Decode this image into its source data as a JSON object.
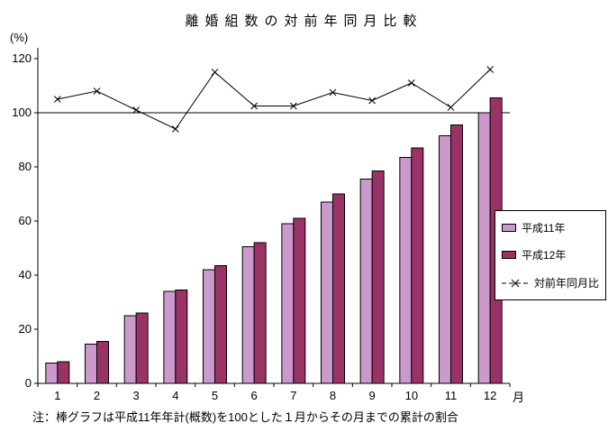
{
  "title": "離婚組数の対前年同月比較",
  "note": "注：棒グラフは平成11年年計(概数)を100とした１月からその月までの累計の割合",
  "axes": {
    "y_unit": "(%)",
    "x_unit": "月"
  },
  "legend": {
    "series1": "平成11年",
    "series2": "平成12年",
    "series3": "対前年同月比"
  },
  "colors": {
    "series1_fill": "#CC99CC",
    "series2_fill": "#993366",
    "line_color": "#000000",
    "axis_color": "#000000",
    "reference_line_color": "#000000"
  },
  "chart_data": {
    "type": "bar",
    "title": "離婚組数の対前年同月比較",
    "xlabel": "月",
    "ylabel": "(%)",
    "categories": [
      "1",
      "2",
      "3",
      "4",
      "5",
      "6",
      "7",
      "8",
      "9",
      "10",
      "11",
      "12"
    ],
    "series": [
      {
        "name": "平成11年",
        "type": "bar",
        "values": [
          7.5,
          14.5,
          25,
          34,
          42,
          50.5,
          59,
          67,
          75.5,
          83.5,
          91.5,
          100
        ]
      },
      {
        "name": "平成12年",
        "type": "bar",
        "values": [
          8,
          15.5,
          26,
          34.5,
          43.5,
          52,
          61,
          70,
          78.5,
          87,
          95.5,
          105.5
        ]
      },
      {
        "name": "対前年同月比",
        "type": "line",
        "values": [
          105,
          108,
          101,
          94,
          115,
          102.5,
          102.5,
          107.5,
          104.5,
          111,
          102,
          116
        ]
      }
    ],
    "ylim": [
      0,
      120
    ],
    "yticks": [
      0,
      20,
      40,
      60,
      80,
      100,
      120
    ],
    "reference_y": 100,
    "grid": false,
    "legend_position": "right"
  }
}
